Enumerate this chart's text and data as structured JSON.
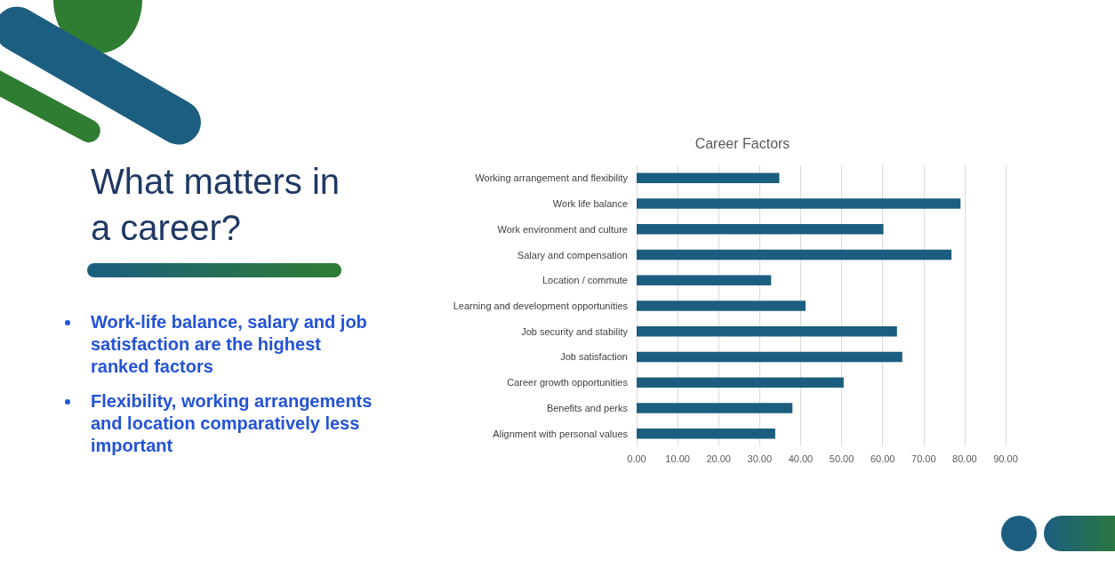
{
  "chart_data": [
    {
      "type": "other",
      "title": "What matters in a career?",
      "annotations": [
        "Work-life balance, salary and job satisfaction are the highest ranked factors",
        "Flexibility, working arrangements and location comparatively less important"
      ]
    },
    {
      "type": "bar",
      "orientation": "horizontal",
      "title": "Career Factors",
      "categories": [
        "Working arrangement and flexibility",
        "Work life balance",
        "Work environment and culture",
        "Salary and compensation",
        "Location / commute",
        "Learning and development opportunities",
        "Job security and stability",
        "Job satisfaction",
        "Career growth opportunities",
        "Benefits and perks",
        "Alignment with personal values"
      ],
      "values": [
        34.8,
        79.0,
        60.2,
        76.8,
        32.8,
        41.2,
        63.5,
        64.8,
        50.5,
        38.0,
        33.8
      ],
      "color": "#1b5e80",
      "xlim": [
        0,
        90
      ],
      "xticks": [
        {
          "value": 0,
          "label": "0.00"
        },
        {
          "value": 10,
          "label": "10.00"
        },
        {
          "value": 20,
          "label": "20.00"
        },
        {
          "value": 30,
          "label": "30.00"
        },
        {
          "value": 40,
          "label": "40.00"
        },
        {
          "value": 50,
          "label": "50.00"
        },
        {
          "value": 60,
          "label": "60.00"
        },
        {
          "value": 70,
          "label": "70.00"
        },
        {
          "value": 80,
          "label": "80.00"
        },
        {
          "value": 90,
          "label": "90.00"
        }
      ],
      "grid": "x"
    }
  ]
}
